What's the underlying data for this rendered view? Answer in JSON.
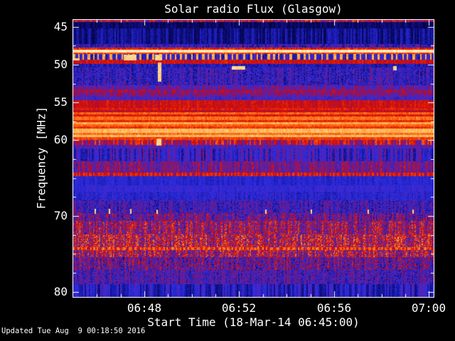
{
  "window": {
    "background": "#000000",
    "text_color": "#ffffff",
    "axis_color": "#ffffff"
  },
  "title": "Solar radio Flux (Glasgow)",
  "footer": {
    "updated": "Updated Tue Aug  9 00:18:50 2016"
  },
  "chart_data": {
    "type": "heatmap",
    "title": "Solar radio Flux (Glasgow)",
    "xlabel": "Start Time (18-Mar-14 06:45:00)",
    "ylabel": "Frequency [MHz]",
    "legend": "none",
    "grid": false,
    "x_axis": {
      "start_time": "06:45:00",
      "date": "18-Mar-14",
      "range_minutes": [
        0,
        15.2
      ],
      "minor_tick_step_minutes": 1,
      "major_ticks": [
        {
          "minutes": 3,
          "label": "06:48"
        },
        {
          "minutes": 7,
          "label": "06:52"
        },
        {
          "minutes": 11,
          "label": "06:56"
        },
        {
          "minutes": 15,
          "label": "07:00"
        }
      ]
    },
    "y_axis": {
      "unit": "MHz",
      "range_mhz": [
        44.1,
        80.7
      ],
      "direction": "increasing-downward",
      "minor_tick_step_mhz": 2.5,
      "major_ticks": [
        45,
        50,
        55,
        60,
        70,
        80
      ]
    },
    "palette": [
      [
        0.0,
        2,
        2,
        40
      ],
      [
        0.1,
        8,
        8,
        100
      ],
      [
        0.2,
        25,
        25,
        170
      ],
      [
        0.3,
        45,
        45,
        225
      ],
      [
        0.37,
        70,
        40,
        200
      ],
      [
        0.44,
        110,
        25,
        140
      ],
      [
        0.5,
        160,
        15,
        80
      ],
      [
        0.58,
        200,
        10,
        15
      ],
      [
        0.66,
        225,
        30,
        5
      ],
      [
        0.74,
        245,
        70,
        5
      ],
      [
        0.82,
        255,
        125,
        30
      ],
      [
        0.88,
        255,
        170,
        70
      ],
      [
        0.94,
        255,
        213,
        130
      ],
      [
        1.0,
        255,
        252,
        225
      ]
    ],
    "bands": [
      {
        "f0": 44.1,
        "f1": 44.4,
        "v": 0.55,
        "col": 0.1,
        "px": 0.2
      },
      {
        "f0": 44.4,
        "f1": 45.2,
        "v": 0.1,
        "col": 0.05,
        "px": 0.04
      },
      {
        "f0": 45.2,
        "f1": 47.3,
        "v": 0.16,
        "col": 0.09,
        "px": 0.05
      },
      {
        "f0": 47.3,
        "f1": 47.8,
        "v": 0.3,
        "col": 0.12,
        "px": 0.16
      },
      {
        "f0": 47.8,
        "f1": 48.0,
        "v": 0.65,
        "col": 0.08,
        "px": 0.08
      },
      {
        "f0": 48.0,
        "f1": 48.4,
        "v": 0.97,
        "col": 0.02,
        "px": 0.03
      },
      {
        "f0": 48.4,
        "f1": 48.6,
        "v": 0.72,
        "col": 0.06,
        "px": 0.08
      },
      {
        "f0": 48.6,
        "f1": 49.4,
        "v": 0.28,
        "col": 0.1,
        "px": 0.08,
        "dash": {
          "w": [
            2,
            4
          ],
          "g": [
            4,
            7
          ],
          "hi": 0.88
        }
      },
      {
        "f0": 49.4,
        "f1": 49.9,
        "v": 0.6,
        "col": 0.06,
        "px": 0.07
      },
      {
        "f0": 49.9,
        "f1": 50.4,
        "v": 0.22,
        "col": 0.06,
        "px": 0.07
      },
      {
        "f0": 50.4,
        "f1": 52.7,
        "v": 0.3,
        "col": 0.08,
        "px": 0.16
      },
      {
        "f0": 52.7,
        "f1": 53.3,
        "v": 0.4,
        "col": 0.08,
        "px": 0.1
      },
      {
        "f0": 53.3,
        "f1": 53.8,
        "v": 0.5,
        "col": 0.08,
        "px": 0.1
      },
      {
        "f0": 53.8,
        "f1": 54.2,
        "v": 0.44,
        "col": 0.08,
        "px": 0.1
      },
      {
        "f0": 54.2,
        "f1": 54.7,
        "v": 0.35,
        "col": 0.08,
        "px": 0.09
      },
      {
        "f0": 54.7,
        "f1": 55.7,
        "v": 0.6,
        "col": 0.05,
        "px": 0.07
      },
      {
        "f0": 55.7,
        "f1": 56.0,
        "v": 0.65,
        "col": 0.05,
        "px": 0.06
      },
      {
        "f0": 56.0,
        "f1": 56.3,
        "v": 0.56,
        "col": 0.05,
        "px": 0.06
      },
      {
        "f0": 56.3,
        "f1": 56.6,
        "v": 0.78,
        "col": 0.04,
        "px": 0.05
      },
      {
        "f0": 56.6,
        "f1": 56.9,
        "v": 0.64,
        "col": 0.04,
        "px": 0.06
      },
      {
        "f0": 56.9,
        "f1": 57.3,
        "v": 0.8,
        "col": 0.03,
        "px": 0.05
      },
      {
        "f0": 57.3,
        "f1": 57.6,
        "v": 0.68,
        "col": 0.04,
        "px": 0.06
      },
      {
        "f0": 57.6,
        "f1": 57.9,
        "v": 0.88,
        "col": 0.03,
        "px": 0.04
      },
      {
        "f0": 57.9,
        "f1": 58.2,
        "v": 0.78,
        "col": 0.03,
        "px": 0.05
      },
      {
        "f0": 58.2,
        "f1": 58.5,
        "v": 0.7,
        "col": 0.04,
        "px": 0.06
      },
      {
        "f0": 58.5,
        "f1": 59.0,
        "v": 0.9,
        "col": 0.02,
        "px": 0.04
      },
      {
        "f0": 59.0,
        "f1": 59.3,
        "v": 0.8,
        "col": 0.03,
        "px": 0.05
      },
      {
        "f0": 59.3,
        "f1": 59.6,
        "v": 0.9,
        "col": 0.02,
        "px": 0.04
      },
      {
        "f0": 59.6,
        "f1": 60.0,
        "v": 0.72,
        "col": 0.04,
        "px": 0.06
      },
      {
        "f0": 60.0,
        "f1": 60.6,
        "v": 0.56,
        "col": 0.2,
        "px": 0.08
      },
      {
        "f0": 60.6,
        "f1": 61.1,
        "v": 0.37,
        "col": 0.1,
        "px": 0.08
      },
      {
        "f0": 61.1,
        "f1": 62.8,
        "v": 0.31,
        "col": 0.14,
        "px": 0.08
      },
      {
        "f0": 62.8,
        "f1": 64.3,
        "v": 0.44,
        "col": 0.1,
        "px": 0.16
      },
      {
        "f0": 64.3,
        "f1": 64.7,
        "v": 0.56,
        "col": 0.08,
        "px": 0.1,
        "dash": {
          "w": [
            2,
            3
          ],
          "g": [
            2,
            5
          ],
          "hi": 0.7
        }
      },
      {
        "f0": 64.7,
        "f1": 66.0,
        "v": 0.27,
        "col": 0.04,
        "px": 0.05
      },
      {
        "f0": 66.0,
        "f1": 66.8,
        "v": 0.31,
        "col": 0.04,
        "px": 0.06
      },
      {
        "f0": 66.8,
        "f1": 67.9,
        "v": 0.28,
        "col": 0.05,
        "px": 0.08
      },
      {
        "f0": 67.9,
        "f1": 69.6,
        "v": 0.32,
        "col": 0.08,
        "px": 0.17
      },
      {
        "f0": 69.6,
        "f1": 70.7,
        "v": 0.4,
        "col": 0.1,
        "px": 0.22
      },
      {
        "f0": 70.7,
        "f1": 72.4,
        "v": 0.5,
        "col": 0.12,
        "px": 0.24
      },
      {
        "f0": 72.4,
        "f1": 74.1,
        "v": 0.56,
        "col": 0.12,
        "px": 0.26
      },
      {
        "f0": 74.1,
        "f1": 74.5,
        "v": 0.62,
        "col": 0.08,
        "px": 0.14,
        "dash": {
          "w": [
            2,
            4
          ],
          "g": [
            2,
            5
          ],
          "hi": 0.8
        }
      },
      {
        "f0": 74.5,
        "f1": 75.4,
        "v": 0.53,
        "col": 0.12,
        "px": 0.26
      },
      {
        "f0": 75.4,
        "f1": 77.1,
        "v": 0.4,
        "col": 0.1,
        "px": 0.24
      },
      {
        "f0": 77.1,
        "f1": 79.0,
        "v": 0.34,
        "col": 0.08,
        "px": 0.18
      },
      {
        "f0": 79.0,
        "f1": 80.7,
        "v": 0.26,
        "col": 0.13,
        "px": 0.05
      }
    ],
    "bright_features": [
      {
        "x": 0.14,
        "y": 0.126,
        "w": 0.036,
        "h": 0.02
      },
      {
        "x": 0.227,
        "y": 0.126,
        "w": 0.02,
        "h": 0.02
      },
      {
        "x": 0.234,
        "y": 0.155,
        "w": 0.009,
        "h": 0.07
      },
      {
        "x": 0.44,
        "y": 0.167,
        "w": 0.038,
        "h": 0.013
      },
      {
        "x": 0.231,
        "y": 0.428,
        "w": 0.014,
        "h": 0.026
      },
      {
        "x": 0.888,
        "y": 0.167,
        "w": 0.01,
        "h": 0.015
      },
      {
        "x": 0.0,
        "y": 0.138,
        "w": 0.018,
        "h": 0.008
      },
      {
        "x": 0.059,
        "y": 0.682,
        "w": 0.004,
        "h": 0.018
      },
      {
        "x": 0.099,
        "y": 0.682,
        "w": 0.004,
        "h": 0.018
      },
      {
        "x": 0.158,
        "y": 0.682,
        "w": 0.004,
        "h": 0.018
      },
      {
        "x": 0.231,
        "y": 0.684,
        "w": 0.004,
        "h": 0.016
      },
      {
        "x": 0.533,
        "y": 0.684,
        "w": 0.004,
        "h": 0.016
      },
      {
        "x": 0.659,
        "y": 0.684,
        "w": 0.004,
        "h": 0.016
      },
      {
        "x": 0.817,
        "y": 0.684,
        "w": 0.004,
        "h": 0.016
      },
      {
        "x": 0.941,
        "y": 0.684,
        "w": 0.004,
        "h": 0.016
      }
    ],
    "feature_value": 0.94,
    "tick_style": {
      "major_len": 8,
      "minor_len": 4,
      "inward": true,
      "color": "#ffffff"
    }
  }
}
